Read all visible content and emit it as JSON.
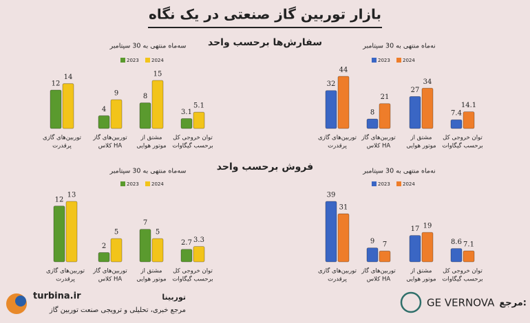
{
  "title": "بازار توربین گاز صنعتی در یک نگاه",
  "sections": [
    "سفارش‌ها برحسب واحد",
    "فروش برحسب واحد"
  ],
  "chart_data": [
    {
      "type": "bar",
      "subtitle": "سه‌ماه منتهی به 30 سپتامبر",
      "categories": [
        [
          "توربین‌های گازی",
          "پرقدرت"
        ],
        [
          "توربین‌های گاز",
          "کلاس HA"
        ],
        [
          "مشتق از",
          "موتور هوایی"
        ],
        [
          "توان خروجی کل",
          "برحسب گیگاوات"
        ]
      ],
      "series": [
        {
          "name": "2023",
          "color": "#5a9a2e",
          "values": [
            12,
            4,
            8,
            3.1
          ]
        },
        {
          "name": "2024",
          "color": "#f2c41a",
          "values": [
            14,
            9,
            15,
            5.1
          ]
        }
      ]
    },
    {
      "type": "bar",
      "subtitle": "نه‌ماه منتهی به 30 سپتامبر",
      "categories": [
        [
          "توربین‌های گازی",
          "پرقدرت"
        ],
        [
          "توربین‌های گاز",
          "کلاس HA"
        ],
        [
          "مشتق از",
          "موتور هوایی"
        ],
        [
          "توان خروجی کل",
          "برحسب گیگاوات"
        ]
      ],
      "series": [
        {
          "name": "2023",
          "color": "#3a66c4",
          "values": [
            32,
            8,
            27,
            7.4
          ]
        },
        {
          "name": "2024",
          "color": "#ee7d2a",
          "values": [
            44,
            21,
            34,
            14.1
          ]
        }
      ]
    },
    {
      "type": "bar",
      "subtitle": "سه‌ماه منتهی به 30 سپتامبر",
      "categories": [
        [
          "توربین‌های گازی",
          "پرقدرت"
        ],
        [
          "توربین‌های گاز",
          "کلاس HA"
        ],
        [
          "مشتق از",
          "موتور هوایی"
        ],
        [
          "توان خروجی کل",
          "برحسب گیگاوات"
        ]
      ],
      "series": [
        {
          "name": "2023",
          "color": "#5a9a2e",
          "values": [
            12,
            2,
            7,
            2.7
          ]
        },
        {
          "name": "2024",
          "color": "#f2c41a",
          "values": [
            13,
            5,
            5,
            3.3
          ]
        }
      ]
    },
    {
      "type": "bar",
      "subtitle": "نه‌ماه منتهی به 30 سپتامبر",
      "categories": [
        [
          "توربین‌های گازی",
          "پرقدرت"
        ],
        [
          "توربین‌های گاز",
          "کلاس HA"
        ],
        [
          "مشتق از",
          "موتور هوایی"
        ],
        [
          "توان خروجی کل",
          "برحسب گیگاوات"
        ]
      ],
      "series": [
        {
          "name": "2023",
          "color": "#3a66c4",
          "values": [
            39,
            9,
            17,
            8.6
          ]
        },
        {
          "name": "2024",
          "color": "#ee7d2a",
          "values": [
            31,
            7,
            19,
            7.1
          ]
        }
      ]
    }
  ],
  "footer": {
    "site": "turbina.ir",
    "brand": "توربینا",
    "tagline": "مرجع خبری، تحلیلی و ترویجی صنعت توربین گاز",
    "source_label": "مرجع:",
    "source": "GE VERNOVA"
  }
}
